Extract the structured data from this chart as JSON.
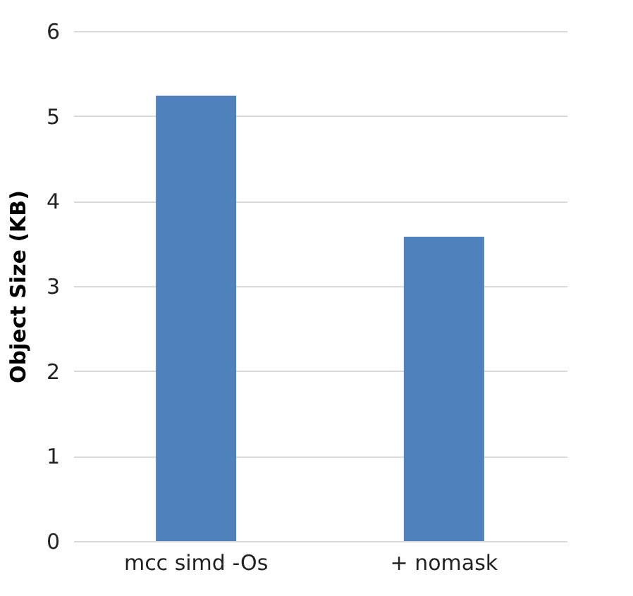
{
  "chart_data": {
    "type": "bar",
    "ylabel": "Object Size (KB)",
    "categories": [
      "mcc simd -Os",
      "+ nomask"
    ],
    "series": [
      {
        "color": "#4f81bd",
        "values": [
          5.24,
          3.58
        ]
      }
    ],
    "ylim": [
      0,
      6
    ],
    "yticks": [
      0,
      1,
      2,
      3,
      4,
      5,
      6
    ],
    "grid": "y"
  }
}
